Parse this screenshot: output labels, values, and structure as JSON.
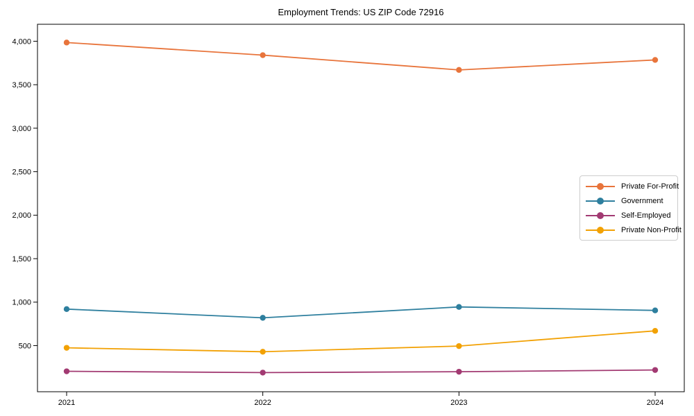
{
  "chart_data": {
    "type": "line",
    "title": "Employment Trends: US ZIP Code 72916",
    "categories": [
      "2021",
      "2022",
      "2023",
      "2024"
    ],
    "series": [
      {
        "name": "Private For-Profit",
        "color": "#e8743b",
        "values": [
          3985,
          3840,
          3670,
          3785
        ]
      },
      {
        "name": "Government",
        "color": "#2e7f9e",
        "values": [
          920,
          820,
          945,
          905
        ]
      },
      {
        "name": "Self-Employed",
        "color": "#a23a72",
        "values": [
          205,
          190,
          200,
          220
        ]
      },
      {
        "name": "Private Non-Profit",
        "color": "#f2a104",
        "values": [
          475,
          430,
          495,
          670
        ]
      }
    ],
    "xlabel": "",
    "ylabel": "",
    "yticks": [
      500,
      1000,
      1500,
      2000,
      2500,
      3000,
      3500,
      4000
    ],
    "ylim": [
      -30,
      4195
    ],
    "grid": false,
    "legend_position": "center-right",
    "axis_color": "#000000",
    "text_color": "#000000",
    "background": "#ffffff"
  }
}
